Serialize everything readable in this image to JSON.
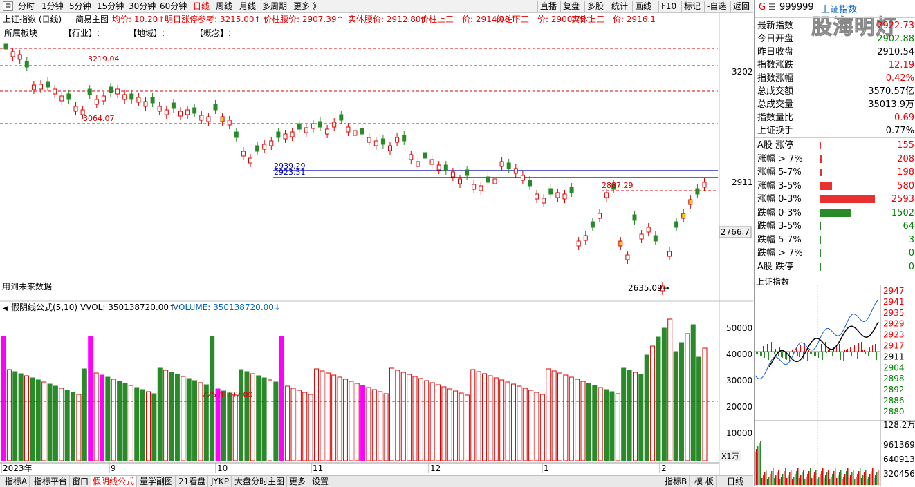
{
  "toolbar": {
    "left_items": [
      "分时",
      "1分钟",
      "5分钟",
      "15分钟",
      "30分钟",
      "60分钟",
      "日线",
      "周线",
      "月线",
      "多周期",
      "更多 》"
    ],
    "active": "日线",
    "right_items": [
      "直播",
      "复盘",
      "多股",
      "统计",
      "画线",
      "F10",
      "标记",
      "-自选",
      "返回"
    ]
  },
  "chart_header": {
    "title": "上证指数 (日线)",
    "mode": "简易主图",
    "items": [
      {
        "text": "均价: 10.20↑",
        "color": "#e00000"
      },
      {
        "text": "明日涨停参考: 3215.00↑",
        "color": "#e00000"
      },
      {
        "text": "价柱腰价: 2907.39↑",
        "color": "#e00000"
      },
      {
        "text": "实体腰价: 2912.80↑",
        "color": "#e00000"
      },
      {
        "text": "价柱上三一价: 2914.03↑",
        "color": "#e00000"
      },
      {
        "text": "价柱下三一价: 2900.75↑",
        "color": "#e00000"
      },
      {
        "text": "实体上三一价: 2916.1",
        "color": "#e00000"
      }
    ],
    "sub_labels": [
      "所属板块",
      "【行业】:",
      "【地域】:",
      "【概念】:"
    ],
    "note": "用到未来数据"
  },
  "price_labels": {
    "y3202": "3202",
    "y2911": "2911",
    "current": "2766.7",
    "hi": "3219.04",
    "lo1": "3064.07",
    "box1": "2939.29",
    "box2": "2923.51",
    "mid": "2887.29",
    "low": "2635.09→"
  },
  "volume_header": {
    "name": "假阴线公式(5,10)",
    "vvol": "VVOL: 350138720.00↑",
    "volume": "VOLUME: 350138720.00↓",
    "level": "22578392.00",
    "unit": "X1万",
    "ticks": [
      "50000",
      "40000",
      "30000",
      "20000",
      "10000"
    ]
  },
  "x_axis": [
    "2023年",
    "9",
    "10",
    "11",
    "12",
    "1",
    "2"
  ],
  "bottombar": {
    "items": [
      "指标A",
      "指标平台",
      "窗口",
      "假阴线公式",
      "量学副图",
      "21看盘",
      "JYKP",
      "大盘分时主图",
      "更多",
      "设置"
    ],
    "right_items": [
      "指标B",
      "模 板"
    ],
    "side": "日线"
  },
  "side": {
    "code": "999999",
    "name": "上证指数",
    "watermark": "股海明灯",
    "stats": [
      {
        "label": "最新指数",
        "value": "2922.73",
        "color": "red"
      },
      {
        "label": "今日开盘",
        "value": "2902.88",
        "color": "green"
      },
      {
        "label": "昨日收盘",
        "value": "2910.54",
        "color": "black"
      },
      {
        "label": "指数涨跌",
        "value": "12.19",
        "color": "red"
      },
      {
        "label": "指数涨幅",
        "value": "0.42%",
        "color": "red"
      },
      {
        "label": "总成交额",
        "value": "3570.57亿",
        "color": "black"
      },
      {
        "label": "总成交量",
        "value": "35013.9万",
        "color": "black"
      },
      {
        "label": "指数量比",
        "value": "0.69",
        "color": "red"
      },
      {
        "label": "上证换手",
        "value": "0.77%",
        "color": "black"
      }
    ],
    "dist": [
      {
        "label": "A股 涨停",
        "value": "155",
        "color": "red",
        "fill": 0.03
      },
      {
        "label": "涨幅 > 7%",
        "value": "208",
        "color": "red",
        "fill": 0.04
      },
      {
        "label": "涨幅 5-7%",
        "value": "198",
        "color": "red",
        "fill": 0.04
      },
      {
        "label": "涨幅 3-5%",
        "value": "580",
        "color": "red",
        "fill": 0.22
      },
      {
        "label": "涨幅 0-3%",
        "value": "2593",
        "color": "red",
        "fill": 1.0
      },
      {
        "label": "跌幅 0-3%",
        "value": "1502",
        "color": "green",
        "fill": 0.58
      },
      {
        "label": "跌幅 3-5%",
        "value": "64",
        "color": "green",
        "fill": 0.01
      },
      {
        "label": "跌幅 5-7%",
        "value": "3",
        "color": "green",
        "fill": 0.005
      },
      {
        "label": "跌幅 > 7%",
        "value": "0",
        "color": "green",
        "fill": 0.005
      },
      {
        "label": "A股 跌停",
        "value": "0",
        "color": "green",
        "fill": 0.005
      }
    ],
    "mini_title": "上证指数",
    "mini_ticks": [
      "2947",
      "2941",
      "2935",
      "2929",
      "2923",
      "2917",
      "2911",
      "2904",
      "2898",
      "2892",
      "2886",
      "2880"
    ],
    "vol_ticks": [
      "128.2万",
      "961369",
      "640913",
      "320456"
    ]
  }
}
